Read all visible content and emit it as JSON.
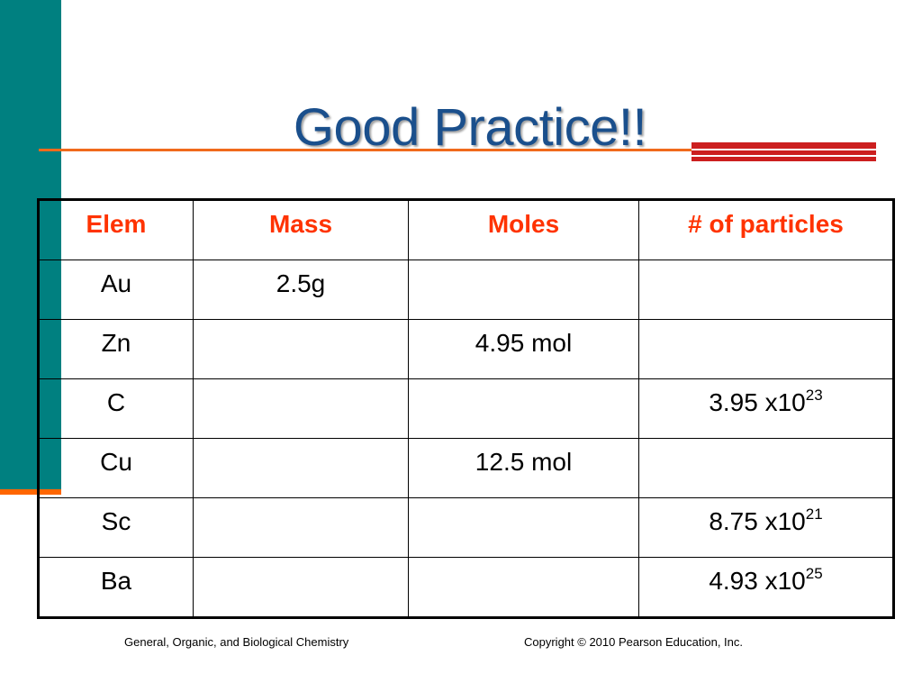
{
  "slide": {
    "title": "Good Practice!!",
    "colors": {
      "teal": "#008080",
      "orange": "#ff6600",
      "red": "#cc1f1f",
      "title": "#1a4f8c",
      "header_text": "#ff3300"
    }
  },
  "table": {
    "headers": [
      "Elem",
      "Mass",
      "Moles",
      "# of particles"
    ],
    "rows": [
      {
        "elem": "Au",
        "mass": "2.5g",
        "moles": "",
        "particles": ""
      },
      {
        "elem": "Zn",
        "mass": "",
        "moles": "4.95 mol",
        "particles": ""
      },
      {
        "elem": "C",
        "mass": "",
        "moles": "",
        "particles": "3.95 x10",
        "exp": "23"
      },
      {
        "elem": "Cu",
        "mass": "",
        "moles": "12.5 mol",
        "particles": ""
      },
      {
        "elem": "Sc",
        "mass": "",
        "moles": "",
        "particles": "8.75 x10",
        "exp": "21"
      },
      {
        "elem": "Ba",
        "mass": "",
        "moles": "",
        "particles": "4.93 x10",
        "exp": "25"
      }
    ]
  },
  "footer": {
    "left": "General, Organic, and Biological Chemistry",
    "right": "Copyright © 2010 Pearson Education, Inc."
  }
}
